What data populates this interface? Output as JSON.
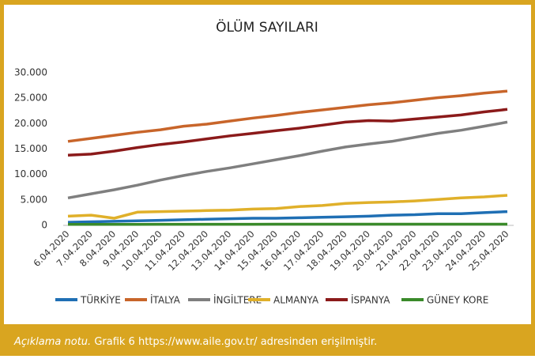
{
  "chart_data": {
    "type": "line",
    "title": "ÖLÜM SAYILARI",
    "categories": [
      "6.04.2020",
      "7.04.2020",
      "8.04.2020",
      "9.04.2020",
      "10.04.2020",
      "11.04.2020",
      "12.04.2020",
      "13.04.2020",
      "14.04.2020",
      "15.04.2020",
      "16.04.2020",
      "17.04.2020",
      "18.04.2020",
      "19.04.2020",
      "20.04.2020",
      "21.04.2020",
      "22.04.2020",
      "23.04.2020",
      "24.04.2020",
      "25.04.2020"
    ],
    "series": [
      {
        "name": "TÜRKİYE",
        "color": "#1f6fb4",
        "values": [
          600,
          700,
          800,
          900,
          1000,
          1100,
          1200,
          1300,
          1400,
          1400,
          1500,
          1600,
          1700,
          1800,
          2000,
          2100,
          2300,
          2300,
          2500,
          2700
        ]
      },
      {
        "name": "İTALYA",
        "color": "#c8652a",
        "values": [
          16500,
          17100,
          17700,
          18300,
          18800,
          19500,
          19900,
          20500,
          21100,
          21600,
          22200,
          22700,
          23200,
          23700,
          24100,
          24600,
          25100,
          25500,
          26000,
          26400
        ]
      },
      {
        "name": "İNGİLTERE",
        "color": "#7f7f7f",
        "values": [
          5400,
          6200,
          7000,
          7900,
          8900,
          9800,
          10600,
          11300,
          12100,
          12900,
          13700,
          14600,
          15400,
          16000,
          16500,
          17300,
          18100,
          18700,
          19500,
          20300
        ]
      },
      {
        "name": "ALMANYA",
        "color": "#e0b02a",
        "values": [
          1800,
          2000,
          1400,
          2600,
          2700,
          2800,
          2900,
          3000,
          3200,
          3300,
          3700,
          3900,
          4300,
          4500,
          4600,
          4800,
          5100,
          5400,
          5600,
          5900
        ]
      },
      {
        "name": "İSPANYA",
        "color": "#8b1a1a",
        "values": [
          13800,
          14000,
          14600,
          15300,
          15900,
          16400,
          17000,
          17600,
          18100,
          18600,
          19100,
          19700,
          20300,
          20600,
          20500,
          20900,
          21300,
          21700,
          22300,
          22800
        ]
      },
      {
        "name": "GÜNEY KORE",
        "color": "#3a8a2a",
        "values": [
          190,
          190,
          200,
          200,
          210,
          210,
          210,
          220,
          220,
          230,
          230,
          230,
          230,
          230,
          240,
          240,
          240,
          240,
          240,
          240
        ]
      }
    ],
    "ylim": [
      0,
      30000
    ],
    "yticks": [
      0,
      {
        "value": 5000,
        "label": "5.000"
      },
      {
        "value": 10000,
        "label": "10.000"
      },
      {
        "value": 15000,
        "label": "15.000"
      },
      {
        "value": 20000,
        "label": "20.000"
      },
      {
        "value": 25000,
        "label": "25.000"
      },
      {
        "value": 30000,
        "label": "30.000"
      }
    ],
    "grid": false,
    "legend": "bottom"
  },
  "caption": {
    "label": "Açıklama notu.",
    "text": "Grafik 6 https://www.aile.gov.tr/ adresinden erişilmiştir."
  }
}
